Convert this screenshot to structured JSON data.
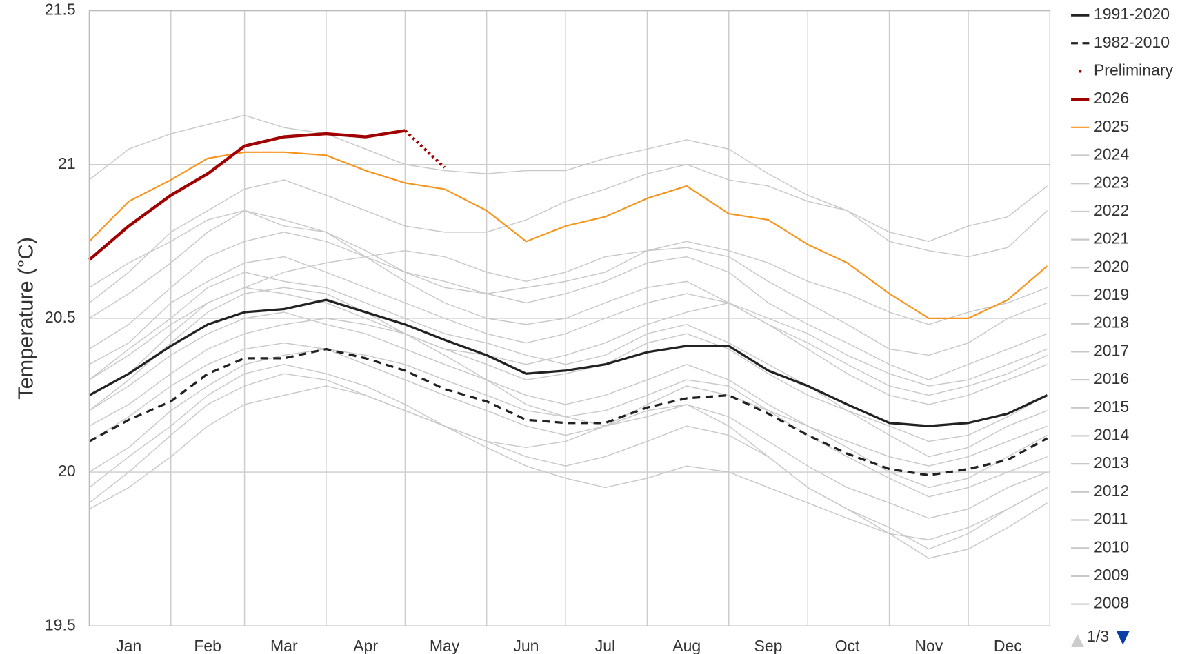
{
  "chart_data": {
    "type": "line",
    "ylabel": "Temperature (°C)",
    "x": [
      1,
      16,
      32,
      46,
      60,
      75,
      91,
      106,
      121,
      136,
      152,
      167,
      182,
      197,
      213,
      228,
      244,
      259,
      274,
      289,
      305,
      320,
      335,
      350,
      365
    ],
    "xlim": [
      1,
      366
    ],
    "xticks": [
      {
        "value": 16,
        "label": "Jan"
      },
      {
        "value": 46,
        "label": "Feb"
      },
      {
        "value": 75,
        "label": "Mar"
      },
      {
        "value": 106,
        "label": "Apr"
      },
      {
        "value": 136,
        "label": "May"
      },
      {
        "value": 167,
        "label": "Jun"
      },
      {
        "value": 197,
        "label": "Jul"
      },
      {
        "value": 228,
        "label": "Aug"
      },
      {
        "value": 259,
        "label": "Sep"
      },
      {
        "value": 289,
        "label": "Oct"
      },
      {
        "value": 320,
        "label": "Nov"
      },
      {
        "value": 350,
        "label": "Dec"
      }
    ],
    "xgrid": [
      32,
      60,
      91,
      121,
      152,
      182,
      213,
      244,
      274,
      305,
      335
    ],
    "ylim": [
      19.5,
      21.5
    ],
    "yticks": [
      19.5,
      20,
      20.5,
      21,
      21.5
    ],
    "grid": true,
    "legend": "right",
    "legend_pager": "1/3",
    "series": [
      {
        "name": "1991-2020",
        "color": "#222222",
        "style": "solid",
        "width": 3,
        "values": [
          20.25,
          20.32,
          20.41,
          20.48,
          20.52,
          20.53,
          20.56,
          20.52,
          20.48,
          20.43,
          20.38,
          20.32,
          20.33,
          20.35,
          20.39,
          20.41,
          20.41,
          20.33,
          20.28,
          20.22,
          20.16,
          20.15,
          20.16,
          20.19,
          20.25
        ]
      },
      {
        "name": "1982-2010",
        "color": "#222222",
        "style": "dashed",
        "width": 3,
        "values": [
          20.1,
          20.17,
          20.23,
          20.32,
          20.37,
          20.37,
          20.4,
          20.37,
          20.33,
          20.27,
          20.23,
          20.17,
          20.16,
          20.16,
          20.21,
          20.24,
          20.25,
          20.19,
          20.12,
          20.06,
          20.01,
          19.99,
          20.01,
          20.04,
          20.11
        ]
      },
      {
        "name": "Preliminary",
        "color": "#a00000",
        "style": "dotted",
        "width": 4,
        "values": [
          null,
          null,
          null,
          null,
          null,
          null,
          null,
          null,
          21.11,
          20.99,
          null,
          null,
          null,
          null,
          null,
          null,
          null,
          null,
          null,
          null,
          null,
          null,
          null,
          null,
          null
        ]
      },
      {
        "name": "2026",
        "color": "#a00000",
        "style": "solid",
        "width": 4,
        "values": [
          20.69,
          20.8,
          20.9,
          20.97,
          21.06,
          21.09,
          21.1,
          21.09,
          21.11,
          null,
          null,
          null,
          null,
          null,
          null,
          null,
          null,
          null,
          null,
          null,
          null,
          null,
          null,
          null,
          null
        ]
      },
      {
        "name": "2025",
        "color": "#f7941d",
        "style": "solid",
        "width": 2,
        "values": [
          20.75,
          20.88,
          20.95,
          21.02,
          21.04,
          21.04,
          21.03,
          20.98,
          20.94,
          20.92,
          20.85,
          20.75,
          20.8,
          20.83,
          20.89,
          20.93,
          20.84,
          20.82,
          20.74,
          20.68,
          20.58,
          20.5,
          20.5,
          20.56,
          20.67
        ]
      },
      {
        "name": "2024",
        "color": "#c8c8c8",
        "style": "solid",
        "width": 1.3,
        "values": [
          20.95,
          21.05,
          21.1,
          21.13,
          21.16,
          21.12,
          21.1,
          21.05,
          21.0,
          20.98,
          20.97,
          20.98,
          20.98,
          21.02,
          21.05,
          21.08,
          21.05,
          20.97,
          20.9,
          20.85,
          20.78,
          20.75,
          20.8,
          20.83,
          20.93
        ]
      },
      {
        "name": "2023",
        "color": "#c8c8c8",
        "style": "solid",
        "width": 1.3,
        "values": [
          20.55,
          20.65,
          20.78,
          20.85,
          20.92,
          20.95,
          20.9,
          20.85,
          20.8,
          20.78,
          20.78,
          20.82,
          20.88,
          20.92,
          20.97,
          21.0,
          20.95,
          20.93,
          20.88,
          20.85,
          20.75,
          20.72,
          20.7,
          20.73,
          20.85
        ]
      },
      {
        "name": "2022",
        "color": "#c8c8c8",
        "style": "solid",
        "width": 1.3,
        "values": [
          20.3,
          20.4,
          20.5,
          20.6,
          20.65,
          20.62,
          20.6,
          20.55,
          20.5,
          20.45,
          20.42,
          20.38,
          20.35,
          20.38,
          20.45,
          20.48,
          20.42,
          20.35,
          20.28,
          20.2,
          20.15,
          20.1,
          20.12,
          20.18,
          20.25
        ]
      },
      {
        "name": "2021",
        "color": "#c8c8c8",
        "style": "solid",
        "width": 1.3,
        "values": [
          20.25,
          20.32,
          20.45,
          20.55,
          20.6,
          20.58,
          20.55,
          20.5,
          20.45,
          20.4,
          20.35,
          20.3,
          20.32,
          20.35,
          20.42,
          20.45,
          20.4,
          20.32,
          20.25,
          20.2,
          20.12,
          20.05,
          20.08,
          20.15,
          20.2
        ]
      },
      {
        "name": "2020",
        "color": "#c8c8c8",
        "style": "solid",
        "width": 1.3,
        "values": [
          20.5,
          20.58,
          20.68,
          20.78,
          20.85,
          20.8,
          20.78,
          20.72,
          20.65,
          20.6,
          20.58,
          20.55,
          20.58,
          20.62,
          20.68,
          20.7,
          20.65,
          20.55,
          20.48,
          20.42,
          20.35,
          20.3,
          20.35,
          20.4,
          20.45
        ]
      },
      {
        "name": "2019",
        "color": "#c8c8c8",
        "style": "solid",
        "width": 1.3,
        "values": [
          20.4,
          20.48,
          20.6,
          20.7,
          20.75,
          20.78,
          20.75,
          20.7,
          20.65,
          20.62,
          20.58,
          20.6,
          20.62,
          20.65,
          20.72,
          20.73,
          20.7,
          20.62,
          20.55,
          20.48,
          20.4,
          20.38,
          20.42,
          20.5,
          20.55
        ]
      },
      {
        "name": "2018",
        "color": "#c8c8c8",
        "style": "solid",
        "width": 1.3,
        "values": [
          20.2,
          20.28,
          20.38,
          20.45,
          20.5,
          20.52,
          20.48,
          20.45,
          20.4,
          20.35,
          20.3,
          20.25,
          20.22,
          20.25,
          20.3,
          20.35,
          20.3,
          20.22,
          20.15,
          20.08,
          20.0,
          19.95,
          19.98,
          20.05,
          20.12
        ]
      },
      {
        "name": "2017",
        "color": "#c8c8c8",
        "style": "solid",
        "width": 1.3,
        "values": [
          20.35,
          20.42,
          20.55,
          20.62,
          20.68,
          20.7,
          20.65,
          20.6,
          20.55,
          20.5,
          20.45,
          20.42,
          20.45,
          20.5,
          20.55,
          20.58,
          20.55,
          20.48,
          20.42,
          20.35,
          20.28,
          20.25,
          20.28,
          20.32,
          20.38
        ]
      },
      {
        "name": "2016",
        "color": "#c8c8c8",
        "style": "solid",
        "width": 1.3,
        "values": [
          20.6,
          20.68,
          20.75,
          20.82,
          20.85,
          20.82,
          20.78,
          20.7,
          20.62,
          20.55,
          20.5,
          20.48,
          20.5,
          20.55,
          20.6,
          20.62,
          20.55,
          20.48,
          20.4,
          20.32,
          20.25,
          20.22,
          20.25,
          20.3,
          20.35
        ]
      },
      {
        "name": "2015",
        "color": "#c8c8c8",
        "style": "solid",
        "width": 1.3,
        "values": [
          20.3,
          20.38,
          20.48,
          20.55,
          20.6,
          20.65,
          20.68,
          20.7,
          20.72,
          20.7,
          20.65,
          20.62,
          20.65,
          20.7,
          20.72,
          20.75,
          20.72,
          20.68,
          20.62,
          20.58,
          20.52,
          20.48,
          20.52,
          20.55,
          20.6
        ]
      },
      {
        "name": "2014",
        "color": "#c8c8c8",
        "style": "solid",
        "width": 1.3,
        "values": [
          20.15,
          20.22,
          20.32,
          20.4,
          20.45,
          20.48,
          20.5,
          20.48,
          20.45,
          20.4,
          20.38,
          20.35,
          20.38,
          20.42,
          20.48,
          20.52,
          20.55,
          20.5,
          20.45,
          20.38,
          20.32,
          20.28,
          20.3,
          20.35,
          20.4
        ]
      },
      {
        "name": "2013",
        "color": "#c8c8c8",
        "style": "solid",
        "width": 1.3,
        "values": [
          20.1,
          20.18,
          20.28,
          20.35,
          20.4,
          20.42,
          20.4,
          20.35,
          20.3,
          20.25,
          20.2,
          20.15,
          20.12,
          20.15,
          20.2,
          20.22,
          20.18,
          20.1,
          20.02,
          19.95,
          19.9,
          19.85,
          19.88,
          19.95,
          20.0
        ]
      },
      {
        "name": "2012",
        "color": "#c8c8c8",
        "style": "solid",
        "width": 1.3,
        "values": [
          20.0,
          20.08,
          20.2,
          20.28,
          20.35,
          20.38,
          20.4,
          20.38,
          20.35,
          20.3,
          20.25,
          20.2,
          20.18,
          20.2,
          20.25,
          20.3,
          20.28,
          20.2,
          20.12,
          20.05,
          19.98,
          19.92,
          19.95,
          20.0,
          20.05
        ]
      },
      {
        "name": "2011",
        "color": "#c8c8c8",
        "style": "solid",
        "width": 1.3,
        "values": [
          19.95,
          20.05,
          20.15,
          20.25,
          20.32,
          20.35,
          20.32,
          20.28,
          20.22,
          20.15,
          20.1,
          20.05,
          20.02,
          20.05,
          20.1,
          20.15,
          20.12,
          20.05,
          19.95,
          19.88,
          19.82,
          19.75,
          19.8,
          19.88,
          19.95
        ]
      },
      {
        "name": "2010",
        "color": "#c8c8c8",
        "style": "solid",
        "width": 1.3,
        "values": [
          20.2,
          20.3,
          20.42,
          20.52,
          20.58,
          20.6,
          20.58,
          20.52,
          20.45,
          20.38,
          20.3,
          20.22,
          20.18,
          20.15,
          20.18,
          20.22,
          20.15,
          20.05,
          19.95,
          19.88,
          19.8,
          19.72,
          19.75,
          19.82,
          19.9
        ]
      },
      {
        "name": "2009",
        "color": "#c8c8c8",
        "style": "solid",
        "width": 1.3,
        "values": [
          19.9,
          20.0,
          20.12,
          20.22,
          20.28,
          20.32,
          20.3,
          20.25,
          20.2,
          20.15,
          20.1,
          20.08,
          20.1,
          20.15,
          20.22,
          20.28,
          20.25,
          20.2,
          20.15,
          20.1,
          20.05,
          20.02,
          20.05,
          20.1,
          20.15
        ]
      },
      {
        "name": "2008",
        "color": "#c8c8c8",
        "style": "solid",
        "width": 1.3,
        "values": [
          19.88,
          19.95,
          20.05,
          20.15,
          20.22,
          20.25,
          20.28,
          20.25,
          20.2,
          20.15,
          20.08,
          20.02,
          19.98,
          19.95,
          19.98,
          20.02,
          20.0,
          19.95,
          19.9,
          19.85,
          19.8,
          19.78,
          19.82,
          19.88,
          19.95
        ]
      }
    ]
  }
}
